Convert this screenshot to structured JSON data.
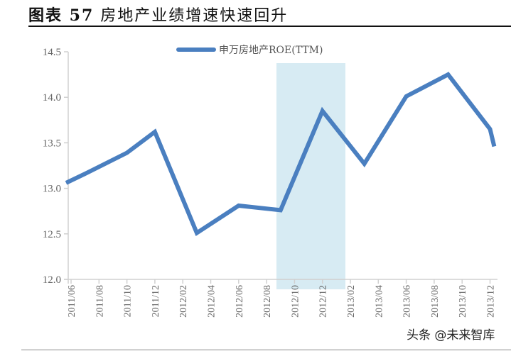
{
  "header": {
    "figure_label": "图表 57",
    "title": "房地产业绩增速快速回升"
  },
  "watermark": "头条 @未来智库",
  "colors": {
    "line": "#4a7fc0",
    "shade": "#d7ebf3",
    "axis": "#d0d0d0",
    "tick_text": "#666666"
  },
  "chart_data": {
    "type": "line",
    "title": "房地产业绩增速快速回升",
    "xlabel": "",
    "ylabel": "",
    "ylim": [
      12.0,
      14.5
    ],
    "yticks": [
      "12.0",
      "12.5",
      "13.0",
      "13.5",
      "14.0",
      "14.5"
    ],
    "categories": [
      "2011/06",
      "2011/08",
      "2011/10",
      "2011/12",
      "2012/02",
      "2012/04",
      "2012/06",
      "2012/08",
      "2012/10",
      "2012/12",
      "2013/02",
      "2013/04",
      "2013/06",
      "2013/08",
      "2013/10",
      "2013/12"
    ],
    "legend": {
      "position": "top",
      "entries": [
        "申万房地产ROE(TTM)"
      ]
    },
    "grid": false,
    "shaded_region": {
      "from": "2012/09",
      "to": "2013/02"
    },
    "series": [
      {
        "name": "申万房地产ROE(TTM)",
        "points": [
          {
            "x": "2011/06",
            "y": 13.06
          },
          {
            "x": "2011/07",
            "y": 13.16
          },
          {
            "x": "2011/10",
            "y": 13.39
          },
          {
            "x": "2011/12",
            "y": 13.62
          },
          {
            "x": "2012/03",
            "y": 12.51
          },
          {
            "x": "2012/06",
            "y": 12.81
          },
          {
            "x": "2012/09",
            "y": 12.76
          },
          {
            "x": "2012/12",
            "y": 13.85
          },
          {
            "x": "2013/03",
            "y": 13.27
          },
          {
            "x": "2013/06",
            "y": 14.01
          },
          {
            "x": "2013/09",
            "y": 14.25
          },
          {
            "x": "2013/12",
            "y": 13.65
          },
          {
            "x": "2013/12+",
            "y": 13.46
          }
        ]
      }
    ]
  }
}
